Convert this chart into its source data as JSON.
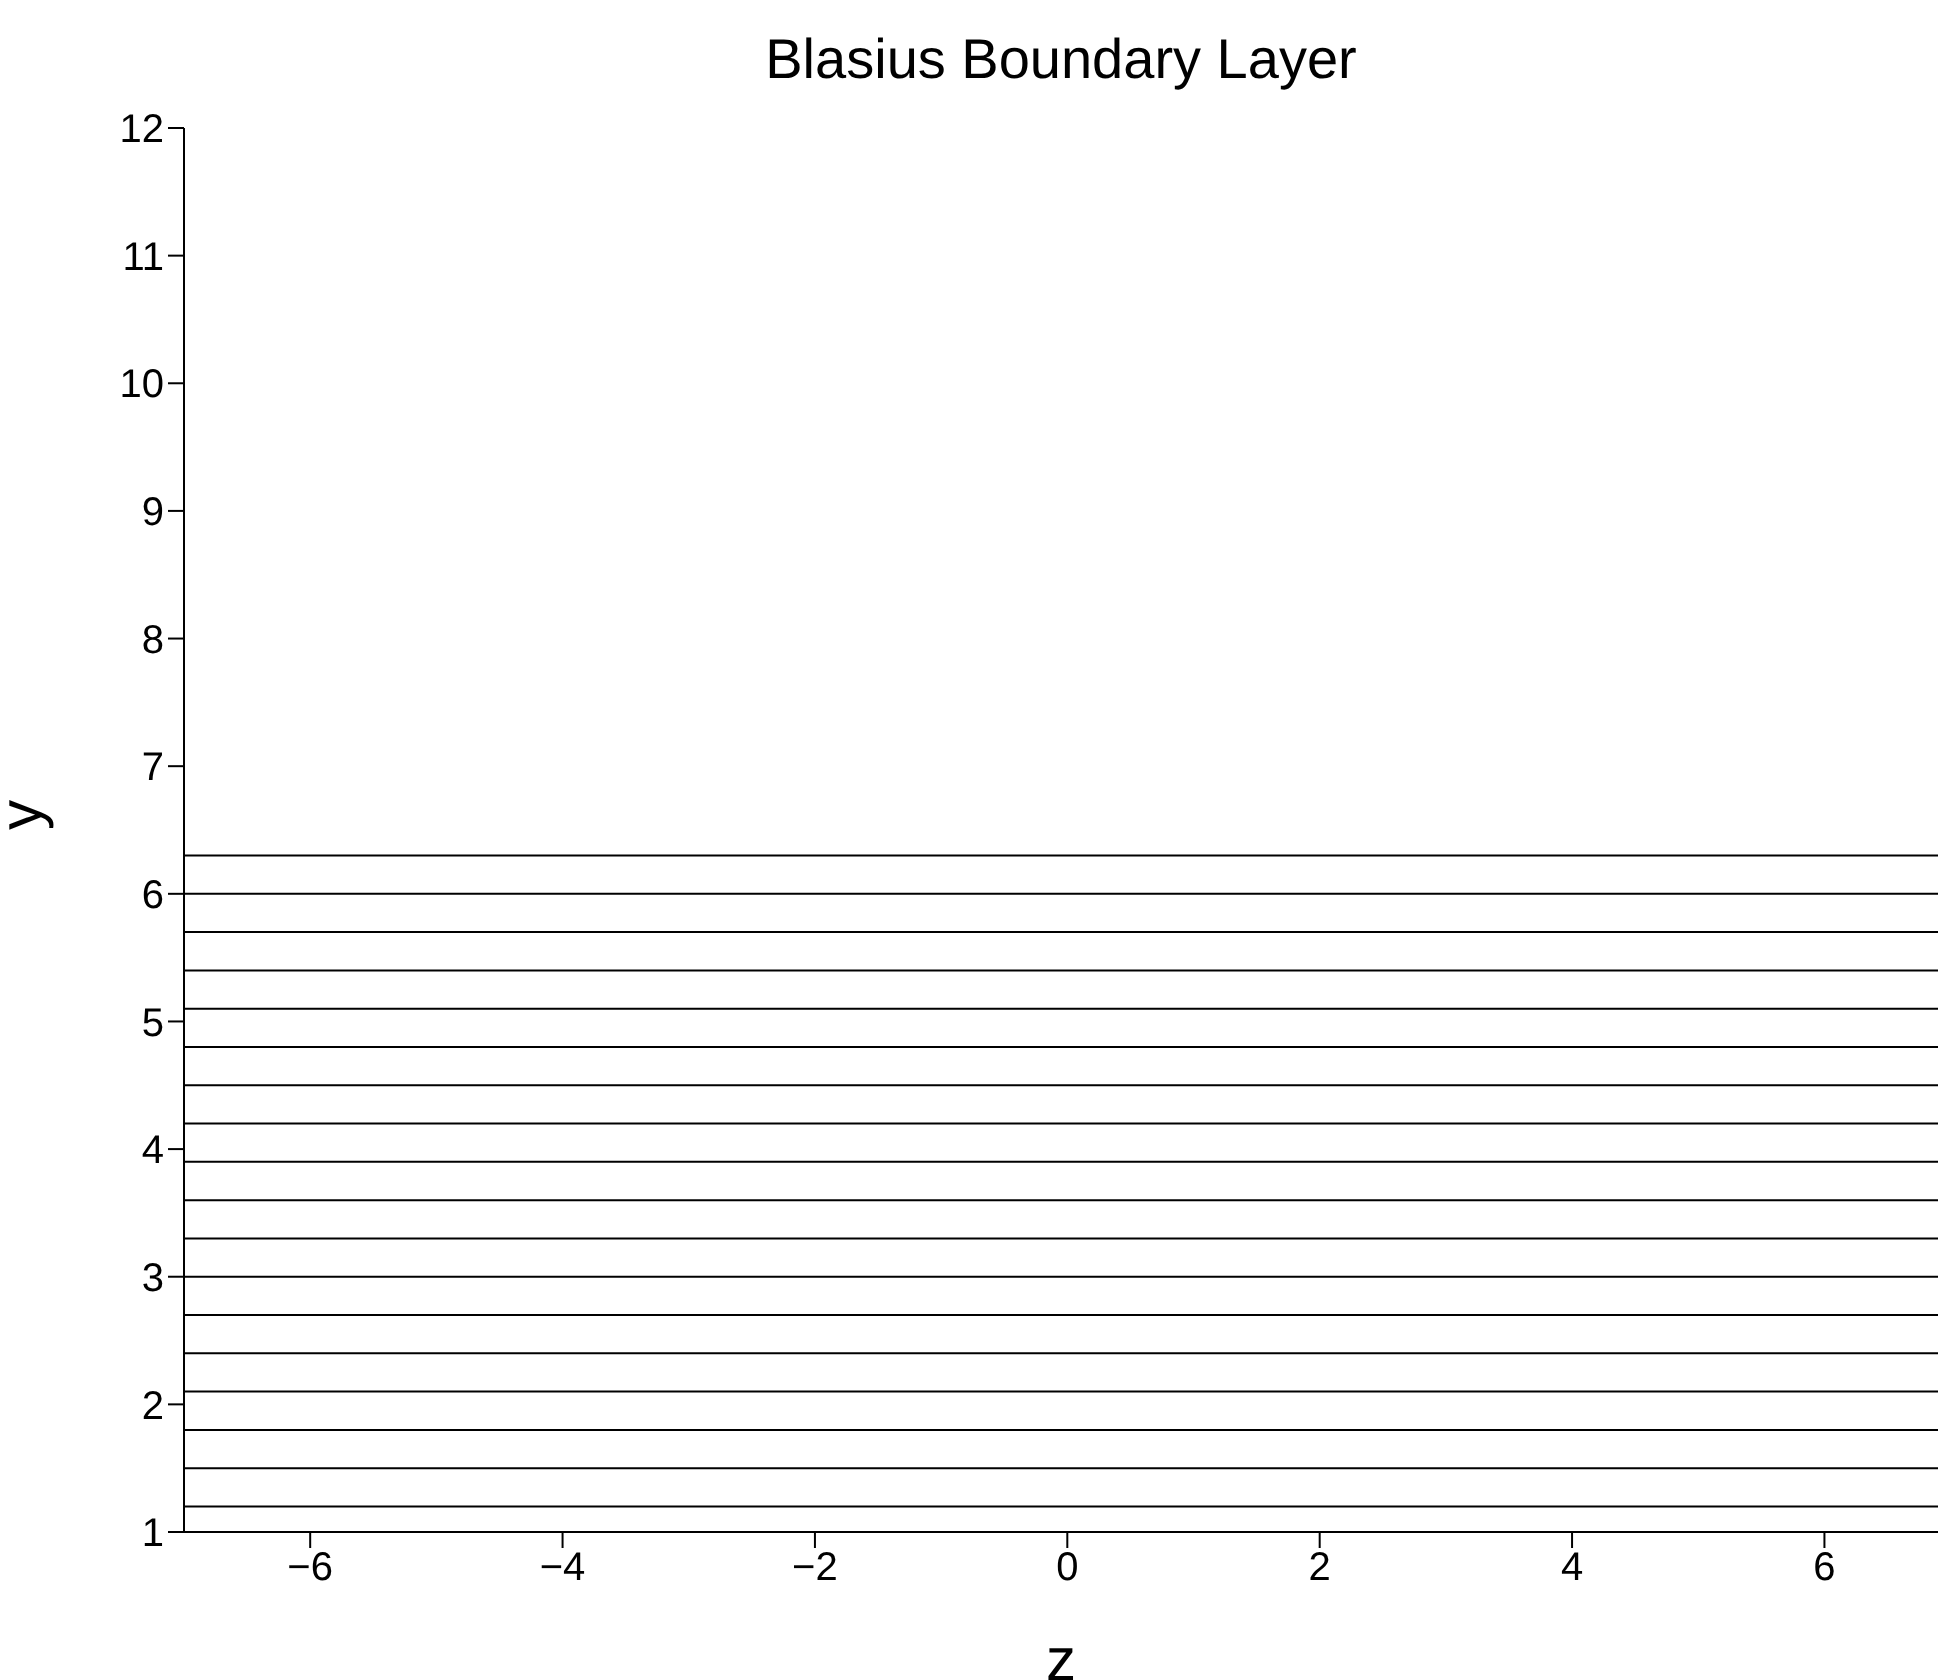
{
  "chart_data": {
    "type": "line",
    "title": "Blasius Boundary Layer",
    "xlabel": "z",
    "ylabel": "y",
    "x": [
      -7,
      6.9
    ],
    "xlim": [
      -7,
      6.9
    ],
    "xticks": [
      -6,
      -4,
      -2,
      0,
      2,
      4,
      6
    ],
    "ylim": [
      1,
      12
    ],
    "yticks": [
      1,
      2,
      3,
      4,
      5,
      6,
      7,
      8,
      9,
      10,
      11,
      12
    ],
    "line_style": "solid",
    "marker": "none",
    "series": [
      {
        "color": "#000000",
        "values": [
          1.2,
          1.2
        ]
      },
      {
        "color": "#000000",
        "values": [
          1.5,
          1.5
        ]
      },
      {
        "color": "#000000",
        "values": [
          1.8,
          1.8
        ]
      },
      {
        "color": "#000000",
        "values": [
          2.1,
          2.1
        ]
      },
      {
        "color": "#000000",
        "values": [
          2.4,
          2.4
        ]
      },
      {
        "color": "#000000",
        "values": [
          2.7,
          2.7
        ]
      },
      {
        "color": "#000000",
        "values": [
          3.0,
          3.0
        ]
      },
      {
        "color": "#000000",
        "values": [
          3.3,
          3.3
        ]
      },
      {
        "color": "#000000",
        "values": [
          3.6,
          3.6
        ]
      },
      {
        "color": "#000000",
        "values": [
          3.9,
          3.9
        ]
      },
      {
        "color": "#000000",
        "values": [
          4.2,
          4.2
        ]
      },
      {
        "color": "#000000",
        "values": [
          4.5,
          4.5
        ]
      },
      {
        "color": "#000000",
        "values": [
          4.8,
          4.8
        ]
      },
      {
        "color": "#000000",
        "values": [
          5.1,
          5.1
        ]
      },
      {
        "color": "#000000",
        "values": [
          5.4,
          5.4
        ]
      },
      {
        "color": "#000000",
        "values": [
          5.7,
          5.7
        ]
      },
      {
        "color": "#000000",
        "values": [
          6.0,
          6.0
        ]
      },
      {
        "color": "#000000",
        "values": [
          6.3,
          6.3
        ]
      }
    ]
  }
}
